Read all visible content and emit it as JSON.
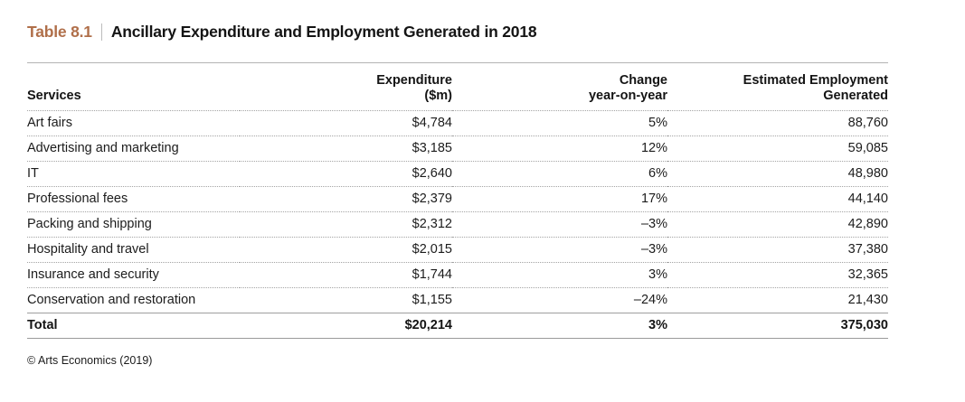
{
  "title": {
    "label": "Table 8.1",
    "text": "Ancillary Expenditure and Employment Generated in 2018",
    "label_color": "#b06f4a"
  },
  "table": {
    "columns": [
      {
        "line1": "Services",
        "line2": ""
      },
      {
        "line1": "Expenditure",
        "line2": "($m)"
      },
      {
        "line1": "Change",
        "line2": "year-on-year"
      },
      {
        "line1": "Estimated Employment",
        "line2": "Generated"
      }
    ],
    "rows": [
      {
        "service": "Art fairs",
        "expenditure": "$4,784",
        "change": "5%",
        "employment": "88,760"
      },
      {
        "service": "Advertising and marketing",
        "expenditure": "$3,185",
        "change": "12%",
        "employment": "59,085"
      },
      {
        "service": "IT",
        "expenditure": "$2,640",
        "change": "6%",
        "employment": "48,980"
      },
      {
        "service": "Professional fees",
        "expenditure": "$2,379",
        "change": "17%",
        "employment": "44,140"
      },
      {
        "service": "Packing and shipping",
        "expenditure": "$2,312",
        "change": "–3%",
        "employment": "42,890"
      },
      {
        "service": "Hospitality and travel",
        "expenditure": "$2,015",
        "change": "–3%",
        "employment": "37,380"
      },
      {
        "service": "Insurance and security",
        "expenditure": "$1,744",
        "change": "3%",
        "employment": "32,365"
      },
      {
        "service": "Conservation and restoration",
        "expenditure": "$1,155",
        "change": "–24%",
        "employment": "21,430"
      }
    ],
    "total": {
      "service": "Total",
      "expenditure": "$20,214",
      "change": "3%",
      "employment": "375,030"
    }
  },
  "footer": {
    "source": "© Arts Economics (2019)"
  }
}
